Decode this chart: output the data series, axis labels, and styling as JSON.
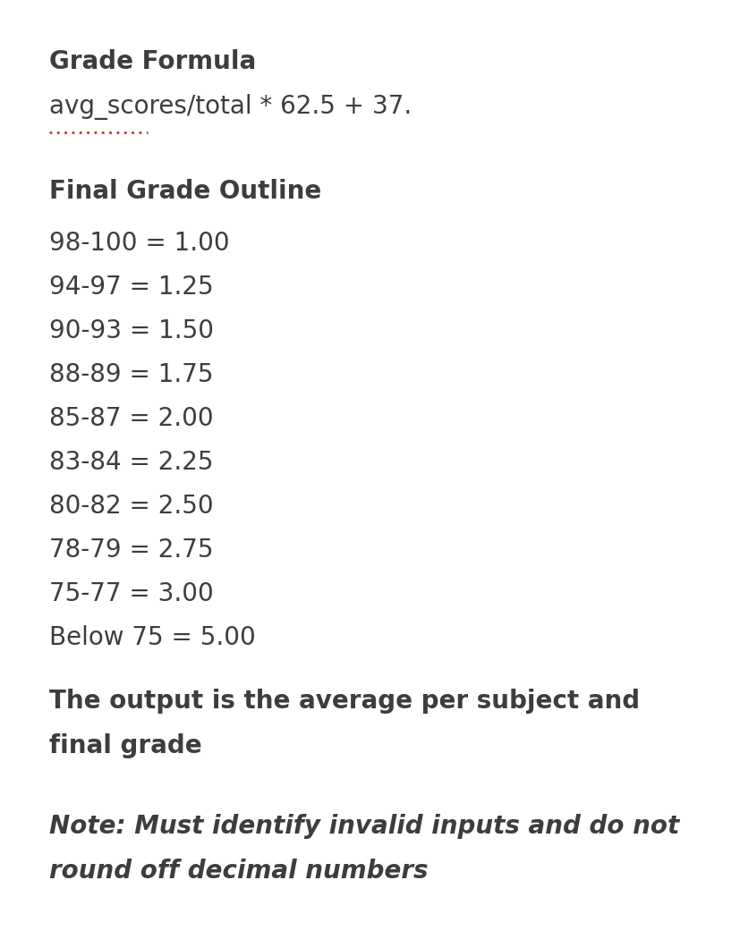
{
  "background_color": "#ffffff",
  "title1": "Grade Formula",
  "formula": "avg_scores/total * 62.5 + 37.",
  "formula_underline_color": "#c0392b",
  "title2": "Final Grade Outline",
  "grade_rows": [
    "98-100 = 1.00",
    "94-97 = 1.25",
    "90-93 = 1.50",
    "88-89 = 1.75",
    "85-87 = 2.00",
    "83-84 = 2.25",
    "80-82 = 2.50",
    "78-79 = 2.75",
    "75-77 = 3.00",
    "Below 75 = 5.00"
  ],
  "output_line1": "The output is the average per subject and",
  "output_line2": "final grade",
  "note_line1": "Note: Must identify invalid inputs and do not",
  "note_line2": "round off decimal numbers",
  "text_color": "#3d3d3d",
  "title_fontsize": 20,
  "formula_fontsize": 20,
  "grade_fontsize": 20,
  "output_fontsize": 20,
  "note_fontsize": 20,
  "figwidth": 8.28,
  "figheight": 10.41,
  "dpi": 100
}
